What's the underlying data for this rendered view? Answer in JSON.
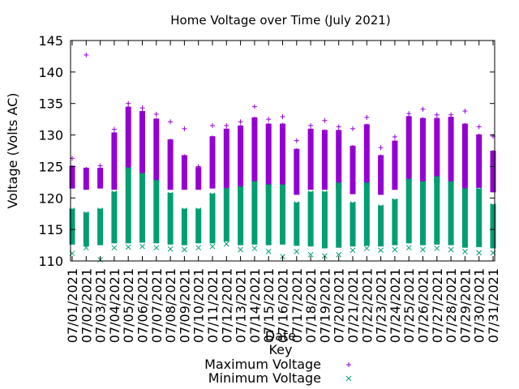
{
  "chart_data": {
    "type": "scatter",
    "title": "Home Voltage over Time (July 2021)",
    "xlabel": "Date",
    "ylabel": "Voltage (Volts AC)",
    "ylim": [
      110,
      145
    ],
    "yticks": [
      110,
      115,
      120,
      125,
      130,
      135,
      140,
      145
    ],
    "categories": [
      "07/01/2021",
      "07/02/2021",
      "07/03/2021",
      "07/04/2021",
      "07/05/2021",
      "07/06/2021",
      "07/07/2021",
      "07/08/2021",
      "07/09/2021",
      "07/10/2021",
      "07/11/2021",
      "07/12/2021",
      "07/13/2021",
      "07/14/2021",
      "07/15/2021",
      "07/16/2021",
      "07/17/2021",
      "07/18/2021",
      "07/19/2021",
      "07/20/2021",
      "07/21/2021",
      "07/22/2021",
      "07/23/2021",
      "07/24/2021",
      "07/25/2021",
      "07/26/2021",
      "07/27/2021",
      "07/28/2021",
      "07/29/2021",
      "07/30/2021",
      "07/31/2021"
    ],
    "legend": {
      "title": "Key",
      "placement": "bottom-center"
    },
    "series": [
      {
        "name": "Maximum Voltage",
        "color": "#9400d3",
        "marker": "plus",
        "band_low": [
          121.5,
          121.3,
          121.5,
          121.3,
          124.5,
          123.6,
          122.5,
          121.3,
          121.3,
          121.3,
          121.5,
          121.5,
          121.5,
          122.3,
          121.8,
          121.8,
          120.5,
          121.3,
          121.3,
          121.5,
          120.6,
          122.0,
          120.5,
          121.3,
          122.6,
          122.3,
          122.4,
          122.1,
          121.4,
          121.6,
          120.9
        ],
        "band_high": [
          125.1,
          124.8,
          124.8,
          130.4,
          134.5,
          133.8,
          132.6,
          129.3,
          126.8,
          124.9,
          129.8,
          131.0,
          131.5,
          132.8,
          131.8,
          131.8,
          127.8,
          131.0,
          130.8,
          130.8,
          128.3,
          131.7,
          126.8,
          129.1,
          133.0,
          132.7,
          132.7,
          132.9,
          131.8,
          130.1,
          127.5
        ],
        "outliers": [
          126.3,
          142.7,
          125.1,
          130.9,
          135.0,
          134.3,
          133.3,
          132.1,
          131.0,
          125.0,
          131.5,
          131.5,
          132.1,
          134.5,
          132.5,
          132.9,
          129.1,
          131.5,
          132.3,
          131.3,
          131.0,
          132.8,
          128.0,
          129.7,
          133.4,
          134.1,
          133.2,
          133.2,
          133.8,
          131.3,
          129.8
        ]
      },
      {
        "name": "Minimum Voltage",
        "color": "#009e73",
        "marker": "cross",
        "band_low": [
          112.6,
          112.3,
          112.5,
          112.8,
          112.8,
          112.9,
          112.8,
          112.6,
          112.5,
          112.8,
          112.8,
          113.1,
          112.5,
          112.6,
          112.5,
          112.6,
          112.4,
          112.3,
          112.0,
          112.1,
          112.3,
          112.4,
          112.3,
          112.5,
          112.8,
          112.5,
          112.6,
          112.5,
          112.1,
          112.2,
          112.0
        ],
        "band_high": [
          118.3,
          117.7,
          118.3,
          121.0,
          124.8,
          123.9,
          122.8,
          120.8,
          118.3,
          118.3,
          120.7,
          121.5,
          121.8,
          122.6,
          122.1,
          122.1,
          119.3,
          121.0,
          121.0,
          122.4,
          119.3,
          122.4,
          118.8,
          119.8,
          123.0,
          122.6,
          123.4,
          122.6,
          121.5,
          121.5,
          119.0
        ],
        "outliers": [
          111.2,
          112.1,
          110.2,
          112.1,
          112.2,
          112.3,
          112.1,
          111.9,
          111.8,
          112.1,
          112.3,
          112.7,
          111.8,
          112.0,
          111.5,
          110.7,
          111.5,
          111.0,
          110.8,
          111.0,
          111.7,
          112.0,
          111.7,
          111.8,
          112.1,
          111.8,
          112.0,
          111.8,
          111.5,
          111.3,
          111.3
        ]
      }
    ]
  }
}
